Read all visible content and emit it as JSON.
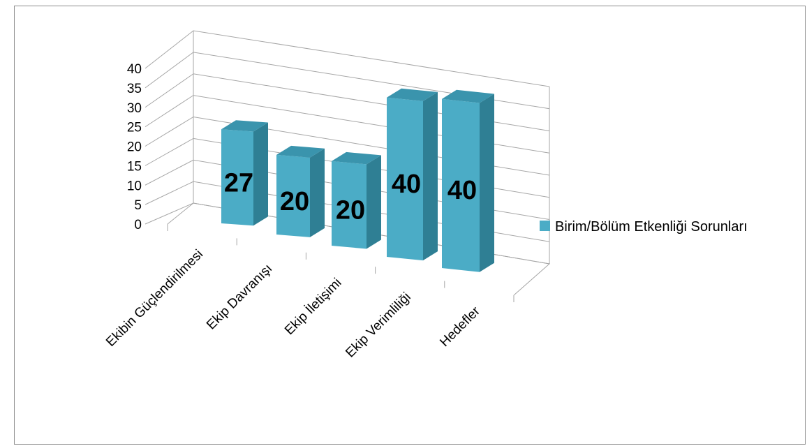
{
  "chart_data": {
    "type": "bar",
    "categories": [
      "Ekibin Güçlendirilmesi",
      "Ekip Davranışı",
      "Ekip İletişimi",
      "Ekip Verimliliği",
      "Hedefler"
    ],
    "series": [
      {
        "name": "Birim/Bölüm Etkenliği Sorunları",
        "values": [
          27,
          20,
          20,
          40,
          40
        ],
        "color": "#4bacc6"
      }
    ],
    "ylim": [
      0,
      40
    ],
    "yticks": [
      0,
      5,
      10,
      15,
      20,
      25,
      30,
      35,
      40
    ],
    "grid": true,
    "legend_position": "right",
    "data_labels": true
  }
}
